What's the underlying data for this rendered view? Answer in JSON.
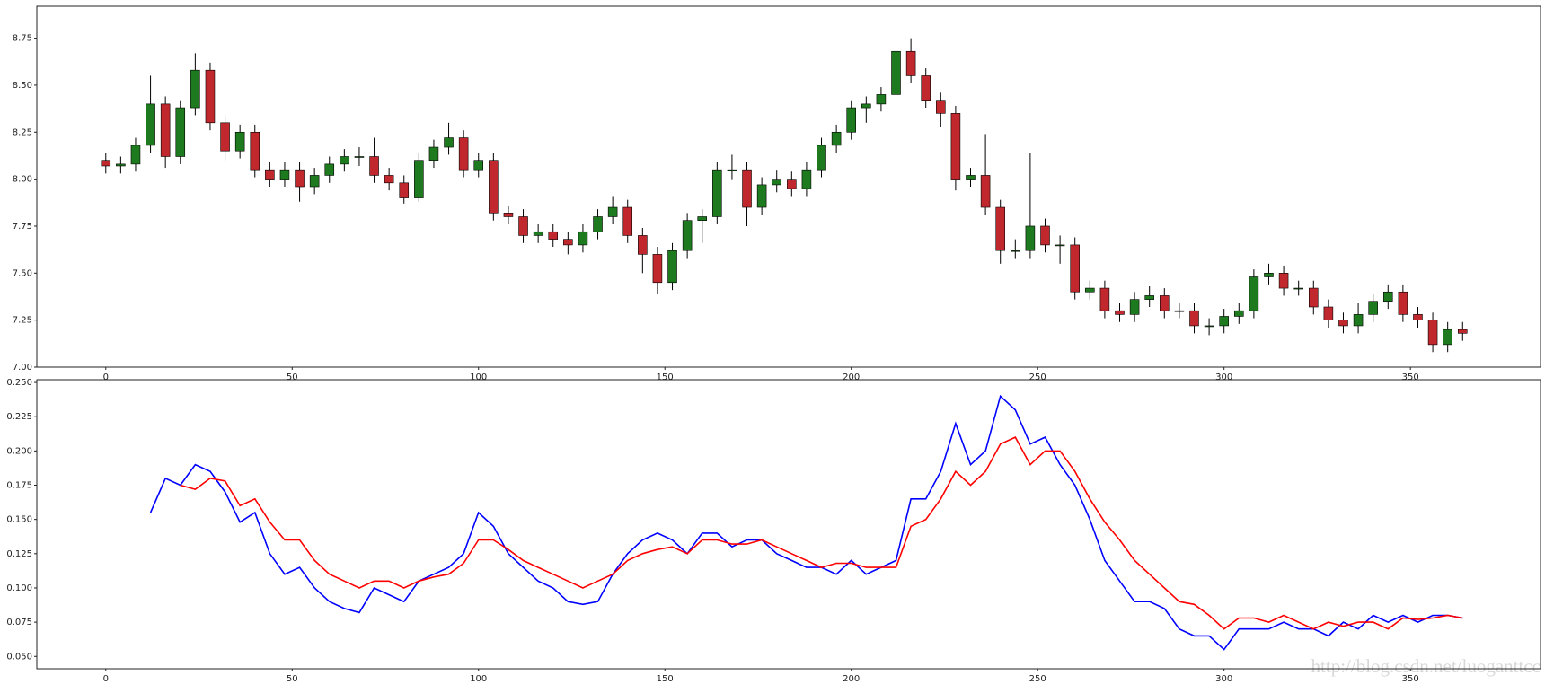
{
  "chart_data": [
    {
      "type": "candlestick",
      "x": [
        0,
        4,
        8,
        12,
        16,
        20,
        24,
        28,
        32,
        36,
        40,
        44,
        48,
        52,
        56,
        60,
        64,
        68,
        72,
        76,
        80,
        84,
        88,
        92,
        96,
        100,
        104,
        108,
        112,
        116,
        120,
        124,
        128,
        132,
        136,
        140,
        144,
        148,
        152,
        156,
        160,
        164,
        168,
        172,
        176,
        180,
        184,
        188,
        192,
        196,
        200,
        204,
        208,
        212,
        216,
        220,
        224,
        228,
        232,
        236,
        240,
        244,
        248,
        252,
        256,
        260,
        264,
        268,
        272,
        276,
        280,
        284,
        288,
        292,
        296,
        300,
        304,
        308,
        312,
        316,
        320,
        324,
        328,
        332,
        336,
        340,
        344,
        348,
        352,
        356,
        360,
        364
      ],
      "open": [
        8.1,
        8.07,
        8.08,
        8.18,
        8.4,
        8.12,
        8.38,
        8.58,
        8.3,
        8.15,
        8.25,
        8.05,
        8.0,
        8.05,
        7.96,
        8.02,
        8.08,
        8.12,
        8.12,
        8.02,
        7.98,
        7.9,
        8.1,
        8.17,
        8.22,
        8.05,
        8.1,
        7.82,
        7.8,
        7.7,
        7.72,
        7.68,
        7.65,
        7.72,
        7.8,
        7.85,
        7.7,
        7.6,
        7.45,
        7.62,
        7.78,
        7.8,
        8.05,
        8.05,
        7.85,
        7.97,
        8.0,
        7.95,
        8.05,
        8.18,
        8.25,
        8.38,
        8.4,
        8.45,
        8.68,
        8.55,
        8.42,
        8.35,
        8.0,
        8.02,
        7.85,
        7.62,
        7.62,
        7.75,
        7.65,
        7.65,
        7.4,
        7.42,
        7.3,
        7.28,
        7.36,
        7.38,
        7.3,
        7.3,
        7.22,
        7.22,
        7.27,
        7.3,
        7.48,
        7.5,
        7.42,
        7.42,
        7.32,
        7.25,
        7.22,
        7.28,
        7.35,
        7.4,
        7.28,
        7.25,
        7.12,
        7.2
      ],
      "high": [
        8.14,
        8.12,
        8.22,
        8.55,
        8.44,
        8.42,
        8.67,
        8.62,
        8.34,
        8.29,
        8.29,
        8.09,
        8.09,
        8.09,
        8.06,
        8.12,
        8.16,
        8.17,
        8.22,
        8.06,
        8.02,
        8.14,
        8.21,
        8.3,
        8.26,
        8.14,
        8.14,
        7.86,
        7.84,
        7.76,
        7.76,
        7.72,
        7.76,
        7.84,
        7.91,
        7.89,
        7.74,
        7.64,
        7.66,
        7.82,
        7.84,
        8.09,
        8.13,
        8.09,
        8.01,
        8.05,
        8.04,
        8.09,
        8.22,
        8.29,
        8.42,
        8.44,
        8.49,
        8.83,
        8.75,
        8.59,
        8.46,
        8.39,
        8.06,
        8.24,
        7.89,
        7.68,
        8.14,
        7.79,
        7.7,
        7.69,
        7.46,
        7.46,
        7.34,
        7.4,
        7.43,
        7.42,
        7.34,
        7.34,
        7.26,
        7.31,
        7.34,
        7.52,
        7.55,
        7.54,
        7.46,
        7.46,
        7.36,
        7.29,
        7.34,
        7.39,
        7.44,
        7.44,
        7.32,
        7.29,
        7.24,
        7.24
      ],
      "low": [
        8.03,
        8.03,
        8.04,
        8.14,
        8.06,
        8.08,
        8.34,
        8.26,
        8.1,
        8.11,
        8.01,
        7.96,
        7.96,
        7.88,
        7.92,
        7.98,
        8.04,
        8.07,
        7.98,
        7.94,
        7.87,
        7.88,
        8.06,
        8.13,
        8.01,
        8.01,
        7.78,
        7.76,
        7.66,
        7.66,
        7.64,
        7.6,
        7.61,
        7.68,
        7.76,
        7.66,
        7.5,
        7.39,
        7.41,
        7.58,
        7.66,
        7.76,
        8.0,
        7.75,
        7.81,
        7.93,
        7.91,
        7.91,
        8.01,
        8.14,
        8.21,
        8.3,
        8.36,
        8.41,
        8.51,
        8.38,
        8.28,
        7.94,
        7.96,
        7.81,
        7.55,
        7.58,
        7.58,
        7.61,
        7.55,
        7.36,
        7.36,
        7.26,
        7.24,
        7.24,
        7.32,
        7.26,
        7.26,
        7.18,
        7.17,
        7.18,
        7.23,
        7.26,
        7.44,
        7.38,
        7.38,
        7.28,
        7.21,
        7.18,
        7.18,
        7.24,
        7.31,
        7.24,
        7.21,
        7.08,
        7.08,
        7.14
      ],
      "close": [
        8.07,
        8.08,
        8.18,
        8.4,
        8.12,
        8.38,
        8.58,
        8.3,
        8.15,
        8.25,
        8.05,
        8.0,
        8.05,
        7.96,
        8.02,
        8.08,
        8.12,
        8.12,
        8.02,
        7.98,
        7.9,
        8.1,
        8.17,
        8.22,
        8.05,
        8.1,
        7.82,
        7.8,
        7.7,
        7.72,
        7.68,
        7.65,
        7.72,
        7.8,
        7.85,
        7.7,
        7.6,
        7.45,
        7.62,
        7.78,
        7.8,
        8.05,
        8.05,
        7.85,
        7.97,
        8.0,
        7.95,
        8.05,
        8.18,
        8.25,
        8.38,
        8.4,
        8.45,
        8.68,
        8.55,
        8.42,
        8.35,
        8.0,
        8.02,
        7.85,
        7.62,
        7.62,
        7.75,
        7.65,
        7.65,
        7.4,
        7.42,
        7.3,
        7.28,
        7.36,
        7.38,
        7.3,
        7.3,
        7.22,
        7.22,
        7.27,
        7.3,
        7.48,
        7.5,
        7.42,
        7.42,
        7.32,
        7.25,
        7.22,
        7.28,
        7.35,
        7.4,
        7.28,
        7.25,
        7.12,
        7.2,
        7.18
      ],
      "colorup": "#1e7a1e",
      "colordown": "#c0282d",
      "xlim": [
        -18.5,
        384.9
      ],
      "ylim": [
        7.0,
        8.92
      ],
      "xticks": [
        0,
        50,
        100,
        150,
        200,
        250,
        300,
        350
      ],
      "yticks": [
        {
          "value": 7.0,
          "label": "7.00"
        },
        7.25,
        {
          "value": 7.5,
          "label": "7.50"
        },
        7.75,
        {
          "value": 8.0,
          "label": "8.00"
        },
        8.25,
        {
          "value": 8.5,
          "label": "8.50"
        },
        8.75
      ]
    },
    {
      "type": "line",
      "x": [
        0,
        4,
        8,
        12,
        16,
        20,
        24,
        28,
        32,
        36,
        40,
        44,
        48,
        52,
        56,
        60,
        64,
        68,
        72,
        76,
        80,
        84,
        88,
        92,
        96,
        100,
        104,
        108,
        112,
        116,
        120,
        124,
        128,
        132,
        136,
        140,
        144,
        148,
        152,
        156,
        160,
        164,
        168,
        172,
        176,
        180,
        184,
        188,
        192,
        196,
        200,
        204,
        208,
        212,
        216,
        220,
        224,
        228,
        232,
        236,
        240,
        244,
        248,
        252,
        256,
        260,
        264,
        268,
        272,
        276,
        280,
        284,
        288,
        292,
        296,
        300,
        304,
        308,
        312,
        316,
        320,
        324,
        328,
        332,
        336,
        340,
        344,
        348,
        352,
        356,
        360,
        364
      ],
      "series": [
        {
          "color": "#0000ff",
          "values": [
            null,
            null,
            null,
            0.155,
            0.18,
            0.175,
            0.19,
            0.185,
            0.17,
            0.148,
            0.155,
            0.125,
            0.11,
            0.115,
            0.1,
            0.09,
            0.085,
            0.082,
            0.1,
            0.095,
            0.09,
            0.105,
            0.11,
            0.115,
            0.125,
            0.155,
            0.145,
            0.125,
            0.115,
            0.105,
            0.1,
            0.09,
            0.088,
            0.09,
            0.11,
            0.125,
            0.135,
            0.14,
            0.135,
            0.125,
            0.14,
            0.14,
            0.13,
            0.135,
            0.135,
            0.125,
            0.12,
            0.115,
            0.115,
            0.11,
            0.12,
            0.11,
            0.115,
            0.12,
            0.165,
            0.165,
            0.185,
            0.22,
            0.19,
            0.2,
            0.24,
            0.23,
            0.205,
            0.21,
            0.19,
            0.175,
            0.15,
            0.12,
            0.105,
            0.09,
            0.09,
            0.085,
            0.07,
            0.065,
            0.065,
            0.055,
            0.07,
            0.07,
            0.07,
            0.075,
            0.07,
            0.07,
            0.065,
            0.075,
            0.07,
            0.08,
            0.075,
            0.08,
            0.075,
            0.08,
            0.08,
            0.078
          ]
        },
        {
          "color": "#ff0000",
          "values": [
            null,
            null,
            null,
            null,
            null,
            0.175,
            0.172,
            0.18,
            0.178,
            0.16,
            0.165,
            0.148,
            0.135,
            0.135,
            0.12,
            0.11,
            0.105,
            0.1,
            0.105,
            0.105,
            0.1,
            0.105,
            0.108,
            0.11,
            0.118,
            0.135,
            0.135,
            0.128,
            0.12,
            0.115,
            0.11,
            0.105,
            0.1,
            0.105,
            0.11,
            0.12,
            0.125,
            0.128,
            0.13,
            0.125,
            0.135,
            0.135,
            0.132,
            0.132,
            0.135,
            0.13,
            0.125,
            0.12,
            0.115,
            0.118,
            0.118,
            0.115,
            0.115,
            0.115,
            0.145,
            0.15,
            0.165,
            0.185,
            0.175,
            0.185,
            0.205,
            0.21,
            0.19,
            0.2,
            0.2,
            0.185,
            0.165,
            0.148,
            0.135,
            0.12,
            0.11,
            0.1,
            0.09,
            0.088,
            0.08,
            0.07,
            0.078,
            0.078,
            0.075,
            0.08,
            0.075,
            0.07,
            0.075,
            0.072,
            0.075,
            0.075,
            0.07,
            0.078,
            0.077,
            0.078,
            0.08,
            0.078
          ]
        }
      ],
      "xlim": [
        -18.5,
        384.9
      ],
      "ylim": [
        0.041,
        0.252
      ],
      "xticks": [
        0,
        50,
        100,
        150,
        200,
        250,
        300,
        350
      ],
      "yticks": [
        {
          "value": 0.05,
          "label": "0.050"
        },
        0.075,
        {
          "value": 0.1,
          "label": "0.100"
        },
        0.125,
        {
          "value": 0.15,
          "label": "0.150"
        },
        0.175,
        {
          "value": 0.2,
          "label": "0.200"
        },
        0.225,
        {
          "value": 0.25,
          "label": "0.250"
        }
      ],
      "watermark": "http://blog.csdn.net/luoganttcc"
    }
  ]
}
